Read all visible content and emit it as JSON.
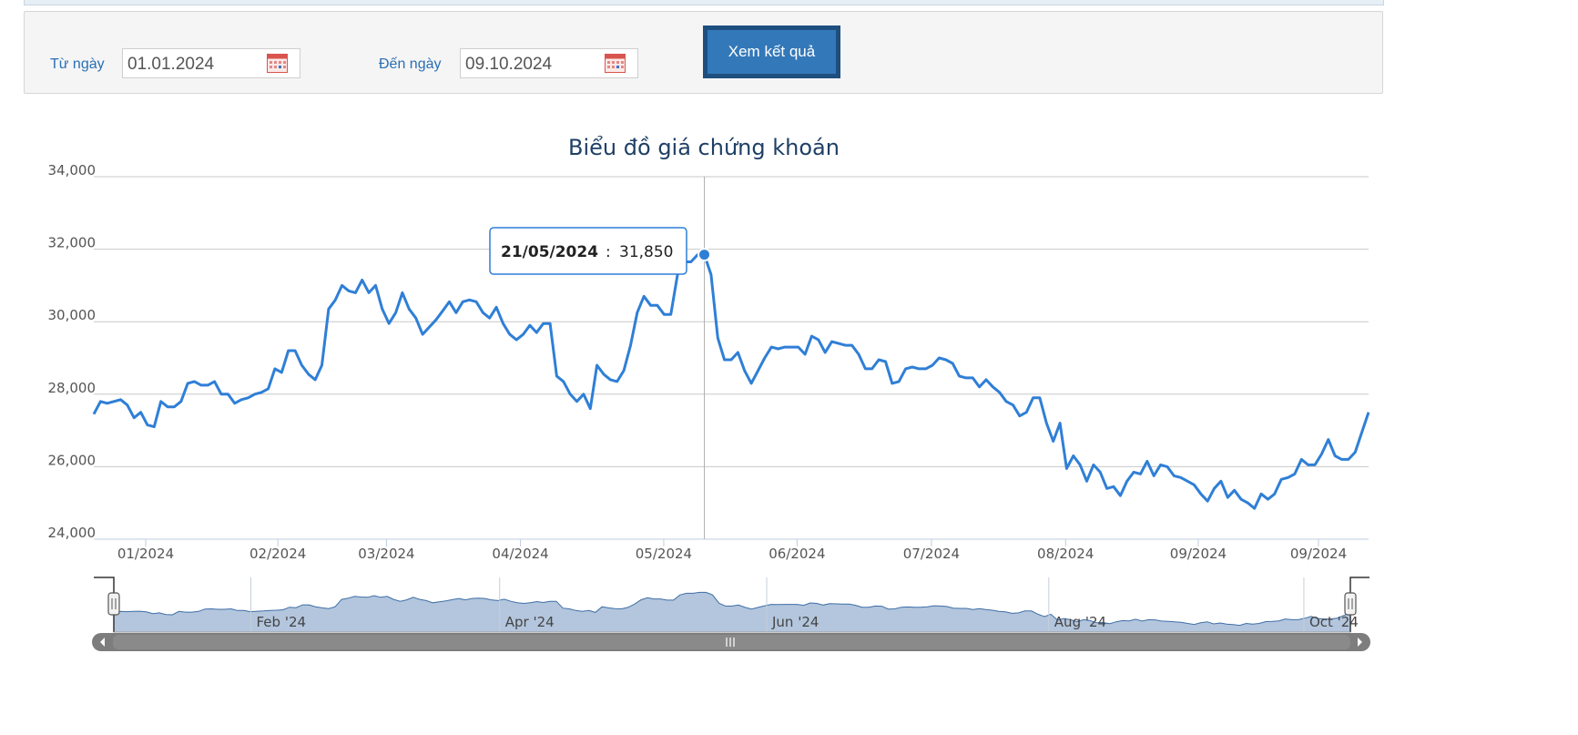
{
  "filter": {
    "from_label": "Từ ngày",
    "from_value": "01.01.2024",
    "to_label": "Đến ngày",
    "to_value": "09.10.2024",
    "submit_label": "Xem kết quả"
  },
  "colors": {
    "line": "#2f7fd6",
    "navigator_fill": "#b3c6dd",
    "grid": "#c8c8c8",
    "scrollbar": "#7d7d7d"
  },
  "chart_data": {
    "type": "line",
    "title": "Biểu đồ giá chứng khoán",
    "xlabel": "",
    "ylabel": "",
    "ylim": [
      24000,
      34000
    ],
    "yticks": [
      "24,000",
      "26,000",
      "28,000",
      "30,000",
      "32,000",
      "34,000"
    ],
    "xticks": [
      "01/2024",
      "02/2024",
      "03/2024",
      "04/2024",
      "05/2024",
      "06/2024",
      "07/2024",
      "08/2024",
      "09/2024",
      "09/2024"
    ],
    "grid": true,
    "series": [
      {
        "values": [
          27450,
          27800,
          27750,
          27800,
          27850,
          27700,
          27350,
          27500,
          27150,
          27100,
          27800,
          27650,
          27650,
          27800,
          28300,
          28350,
          28250,
          28250,
          28350,
          28000,
          28000,
          27750,
          27850,
          27900,
          28000,
          28050,
          28150,
          28700,
          28600,
          29200,
          29200,
          28800,
          28550,
          28400,
          28800,
          30350,
          30600,
          31000,
          30850,
          30800,
          31150,
          30800,
          31000,
          30350,
          29950,
          30250,
          30800,
          30350,
          30100,
          29650,
          29850,
          30050,
          30300,
          30550,
          30250,
          30550,
          30600,
          30550,
          30250,
          30100,
          30400,
          29950,
          29650,
          29500,
          29650,
          29900,
          29700,
          29950,
          29950,
          28500,
          28350,
          28000,
          27800,
          28000,
          27600,
          28800,
          28550,
          28400,
          28350,
          28650,
          29350,
          30250,
          30700,
          30450,
          30450,
          30200,
          30200,
          31300,
          31650,
          31650,
          31850,
          31850,
          31300,
          29550,
          28950,
          28950,
          29150,
          28650,
          28300,
          28650,
          29000,
          29300,
          29250,
          29300,
          29300,
          29300,
          29100,
          29600,
          29500,
          29150,
          29450,
          29400,
          29350,
          29350,
          29100,
          28700,
          28700,
          28950,
          28900,
          28300,
          28350,
          28700,
          28750,
          28700,
          28700,
          28800,
          29000,
          28950,
          28850,
          28500,
          28450,
          28450,
          28200,
          28400,
          28200,
          28050,
          27800,
          27700,
          27400,
          27500,
          27900,
          27900,
          27200,
          26700,
          27200,
          25950,
          26300,
          26050,
          25600,
          26050,
          25850,
          25400,
          25450,
          25200,
          25600,
          25850,
          25800,
          26150,
          25750,
          26050,
          26000,
          25750,
          25700,
          25600,
          25500,
          25250,
          25050,
          25400,
          25600,
          25150,
          25350,
          25100,
          25000,
          24850,
          25250,
          25100,
          25250,
          25650,
          25700,
          25800,
          26200,
          26050,
          26050,
          26350,
          26750,
          26300,
          26200,
          26200,
          26400,
          26950,
          27500
        ]
      }
    ],
    "tooltip": {
      "date": "21/05/2024",
      "value": "31,850"
    },
    "navigator_labels": [
      "Feb '24",
      "Apr '24",
      "Jun '24",
      "Aug '24",
      "Oct '24"
    ]
  }
}
